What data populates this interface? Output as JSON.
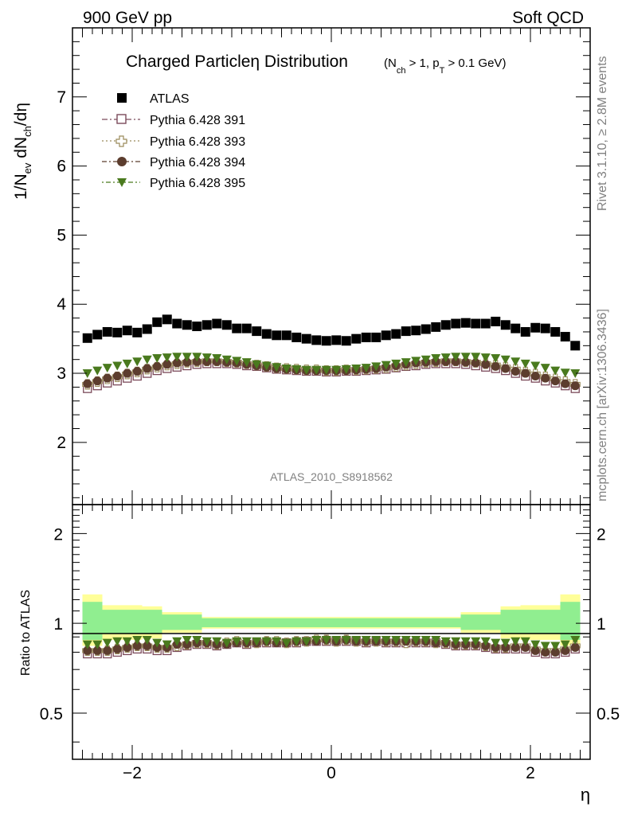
{
  "header": {
    "left": "900 GeV pp",
    "right": "Soft QCD"
  },
  "title": {
    "main": "Charged Particleη Distribution",
    "sub_nch": "(N",
    "sub_nch_sub": "ch",
    "sub_mid": " > 1, p",
    "sub_pt_sub": "T",
    "sub_end": " > 0.1 GeV)"
  },
  "side_labels": {
    "rivet": "Rivet 3.1.10, ≥ 2.8M events",
    "mcplots": "mcplots.cern.ch [arXiv:1306.3436]"
  },
  "watermark": "ATLAS_2010_S8918562",
  "ylabel_main": {
    "a": "1/N",
    "a_sub": "ev",
    "b": " dN",
    "b_sub": "ch",
    "c": "/dη"
  },
  "ylabel_ratio": "Ratio to ATLAS",
  "xlabel": "η",
  "chart_data": [
    {
      "type": "scatter",
      "panel": "main",
      "xlim": [
        -2.6,
        2.6
      ],
      "ylim": [
        1.1,
        8.0
      ],
      "yticks": [
        2,
        3,
        4,
        5,
        6,
        7
      ],
      "ytick_labels": [
        "2",
        "3",
        "4",
        "5",
        "6",
        "7"
      ],
      "legend_position": "top-left",
      "grid": false,
      "x": [
        -2.45,
        -2.35,
        -2.25,
        -2.15,
        -2.05,
        -1.95,
        -1.85,
        -1.75,
        -1.65,
        -1.55,
        -1.45,
        -1.35,
        -1.25,
        -1.15,
        -1.05,
        -0.95,
        -0.85,
        -0.75,
        -0.65,
        -0.55,
        -0.45,
        -0.35,
        -0.25,
        -0.15,
        -0.05,
        0.05,
        0.15,
        0.25,
        0.35,
        0.45,
        0.55,
        0.65,
        0.75,
        0.85,
        0.95,
        1.05,
        1.15,
        1.25,
        1.35,
        1.45,
        1.55,
        1.65,
        1.75,
        1.85,
        1.95,
        2.05,
        2.15,
        2.25,
        2.35,
        2.45
      ],
      "series": [
        {
          "name": "ATLAS",
          "color": "#000000",
          "marker": "filled-square",
          "values": [
            3.51,
            3.56,
            3.6,
            3.59,
            3.62,
            3.59,
            3.64,
            3.74,
            3.78,
            3.72,
            3.7,
            3.68,
            3.7,
            3.72,
            3.7,
            3.65,
            3.65,
            3.61,
            3.57,
            3.55,
            3.55,
            3.52,
            3.5,
            3.48,
            3.47,
            3.48,
            3.47,
            3.5,
            3.52,
            3.52,
            3.55,
            3.57,
            3.61,
            3.62,
            3.64,
            3.67,
            3.7,
            3.72,
            3.73,
            3.72,
            3.72,
            3.75,
            3.7,
            3.65,
            3.6,
            3.66,
            3.65,
            3.6,
            3.53,
            3.4
          ]
        },
        {
          "name": "Pythia 6.428 391",
          "color": "#7b4a5a",
          "marker": "open-square",
          "values": [
            2.78,
            2.82,
            2.86,
            2.89,
            2.93,
            2.96,
            3.0,
            3.04,
            3.07,
            3.09,
            3.11,
            3.13,
            3.14,
            3.14,
            3.14,
            3.13,
            3.11,
            3.1,
            3.08,
            3.06,
            3.05,
            3.04,
            3.03,
            3.03,
            3.02,
            3.02,
            3.03,
            3.03,
            3.04,
            3.05,
            3.06,
            3.08,
            3.1,
            3.11,
            3.13,
            3.14,
            3.14,
            3.14,
            3.13,
            3.11,
            3.09,
            3.07,
            3.04,
            3.0,
            2.96,
            2.93,
            2.89,
            2.86,
            2.82,
            2.78
          ]
        },
        {
          "name": "Pythia 6.428 393",
          "color": "#9a8a5a",
          "marker": "open-cross",
          "values": [
            2.84,
            2.88,
            2.92,
            2.95,
            2.99,
            3.02,
            3.06,
            3.09,
            3.12,
            3.14,
            3.16,
            3.17,
            3.18,
            3.18,
            3.17,
            3.16,
            3.14,
            3.12,
            3.1,
            3.08,
            3.07,
            3.06,
            3.05,
            3.05,
            3.04,
            3.04,
            3.05,
            3.05,
            3.06,
            3.07,
            3.08,
            3.1,
            3.12,
            3.14,
            3.16,
            3.17,
            3.18,
            3.18,
            3.17,
            3.16,
            3.14,
            3.12,
            3.09,
            3.06,
            3.02,
            2.99,
            2.95,
            2.92,
            2.88,
            2.84
          ]
        },
        {
          "name": "Pythia 6.428 394",
          "color": "#5c3d2e",
          "marker": "filled-circle",
          "values": [
            2.85,
            2.89,
            2.93,
            2.96,
            3.0,
            3.03,
            3.07,
            3.1,
            3.13,
            3.15,
            3.16,
            3.17,
            3.17,
            3.17,
            3.16,
            3.15,
            3.13,
            3.11,
            3.09,
            3.07,
            3.06,
            3.05,
            3.04,
            3.04,
            3.04,
            3.04,
            3.04,
            3.05,
            3.06,
            3.07,
            3.09,
            3.11,
            3.13,
            3.15,
            3.16,
            3.17,
            3.17,
            3.17,
            3.16,
            3.15,
            3.13,
            3.1,
            3.07,
            3.03,
            3.0,
            2.96,
            2.93,
            2.89,
            2.85,
            2.82
          ]
        },
        {
          "name": "Pythia 6.428 395",
          "color": "#4a7a1e",
          "marker": "filled-triangle-down",
          "values": [
            3.0,
            3.04,
            3.08,
            3.11,
            3.14,
            3.17,
            3.2,
            3.22,
            3.23,
            3.24,
            3.24,
            3.24,
            3.23,
            3.22,
            3.2,
            3.18,
            3.16,
            3.13,
            3.11,
            3.09,
            3.07,
            3.06,
            3.05,
            3.05,
            3.05,
            3.05,
            3.06,
            3.07,
            3.08,
            3.1,
            3.12,
            3.14,
            3.16,
            3.18,
            3.2,
            3.22,
            3.23,
            3.24,
            3.24,
            3.24,
            3.23,
            3.22,
            3.2,
            3.17,
            3.14,
            3.11,
            3.08,
            3.04,
            3.01,
            3.0
          ]
        }
      ]
    },
    {
      "type": "scatter",
      "panel": "ratio",
      "xlim": [
        -2.6,
        2.6
      ],
      "ylim": [
        0.35,
        2.5
      ],
      "log_y": true,
      "yticks": [
        0.5,
        1,
        2
      ],
      "ytick_labels": [
        "0.5",
        "1",
        "2"
      ],
      "xticks": [
        -2,
        0,
        2
      ],
      "xtick_labels": [
        "−2",
        "0",
        "2"
      ],
      "bands": {
        "edges": [
          -2.5,
          -2.3,
          -2.1,
          -1.9,
          -1.7,
          -1.3,
          1.3,
          1.7,
          1.9,
          2.1,
          2.3,
          2.5
        ],
        "inner_color": "#90ee90",
        "outer_color": "#ffff99",
        "inner_upper": [
          1.18,
          1.11,
          1.11,
          1.11,
          1.07,
          1.04,
          1.07,
          1.11,
          1.11,
          1.11,
          1.18
        ],
        "inner_lower": [
          0.88,
          0.92,
          0.92,
          0.92,
          0.95,
          0.97,
          0.95,
          0.92,
          0.92,
          0.92,
          0.88
        ],
        "outer_upper": [
          1.25,
          1.15,
          1.15,
          1.14,
          1.09,
          1.05,
          1.09,
          1.14,
          1.15,
          1.15,
          1.25
        ],
        "outer_lower": [
          0.84,
          0.88,
          0.88,
          0.89,
          0.93,
          0.96,
          0.93,
          0.89,
          0.88,
          0.88,
          0.84
        ]
      },
      "series": [
        {
          "name": "Pythia 6.428 391",
          "values": [
            0.79,
            0.79,
            0.79,
            0.8,
            0.81,
            0.82,
            0.82,
            0.81,
            0.81,
            0.83,
            0.84,
            0.85,
            0.85,
            0.84,
            0.85,
            0.86,
            0.85,
            0.86,
            0.86,
            0.86,
            0.86,
            0.86,
            0.87,
            0.87,
            0.87,
            0.87,
            0.87,
            0.87,
            0.86,
            0.87,
            0.86,
            0.86,
            0.86,
            0.86,
            0.86,
            0.86,
            0.85,
            0.84,
            0.84,
            0.84,
            0.83,
            0.82,
            0.82,
            0.82,
            0.82,
            0.8,
            0.79,
            0.79,
            0.8,
            0.82
          ]
        },
        {
          "name": "Pythia 6.428 393",
          "values": [
            0.81,
            0.81,
            0.81,
            0.82,
            0.83,
            0.84,
            0.84,
            0.83,
            0.83,
            0.84,
            0.85,
            0.86,
            0.86,
            0.85,
            0.86,
            0.87,
            0.86,
            0.86,
            0.87,
            0.87,
            0.86,
            0.87,
            0.87,
            0.88,
            0.88,
            0.87,
            0.88,
            0.87,
            0.87,
            0.87,
            0.87,
            0.87,
            0.86,
            0.87,
            0.87,
            0.86,
            0.86,
            0.85,
            0.85,
            0.85,
            0.84,
            0.83,
            0.83,
            0.84,
            0.84,
            0.82,
            0.81,
            0.81,
            0.82,
            0.84
          ]
        },
        {
          "name": "Pythia 6.428 394",
          "values": [
            0.81,
            0.81,
            0.81,
            0.82,
            0.83,
            0.84,
            0.84,
            0.83,
            0.83,
            0.85,
            0.85,
            0.86,
            0.86,
            0.85,
            0.85,
            0.86,
            0.86,
            0.86,
            0.87,
            0.86,
            0.86,
            0.87,
            0.87,
            0.87,
            0.88,
            0.87,
            0.88,
            0.87,
            0.87,
            0.87,
            0.87,
            0.87,
            0.87,
            0.87,
            0.87,
            0.86,
            0.86,
            0.85,
            0.85,
            0.85,
            0.84,
            0.83,
            0.83,
            0.83,
            0.83,
            0.81,
            0.8,
            0.8,
            0.81,
            0.83
          ]
        },
        {
          "name": "Pythia 6.428 395",
          "values": [
            0.85,
            0.85,
            0.86,
            0.87,
            0.87,
            0.88,
            0.88,
            0.86,
            0.85,
            0.87,
            0.88,
            0.88,
            0.87,
            0.87,
            0.86,
            0.87,
            0.87,
            0.87,
            0.87,
            0.87,
            0.86,
            0.87,
            0.87,
            0.88,
            0.88,
            0.88,
            0.88,
            0.88,
            0.88,
            0.88,
            0.88,
            0.88,
            0.88,
            0.88,
            0.88,
            0.88,
            0.87,
            0.87,
            0.87,
            0.87,
            0.87,
            0.86,
            0.86,
            0.87,
            0.87,
            0.85,
            0.84,
            0.84,
            0.85,
            0.88
          ]
        }
      ]
    }
  ]
}
